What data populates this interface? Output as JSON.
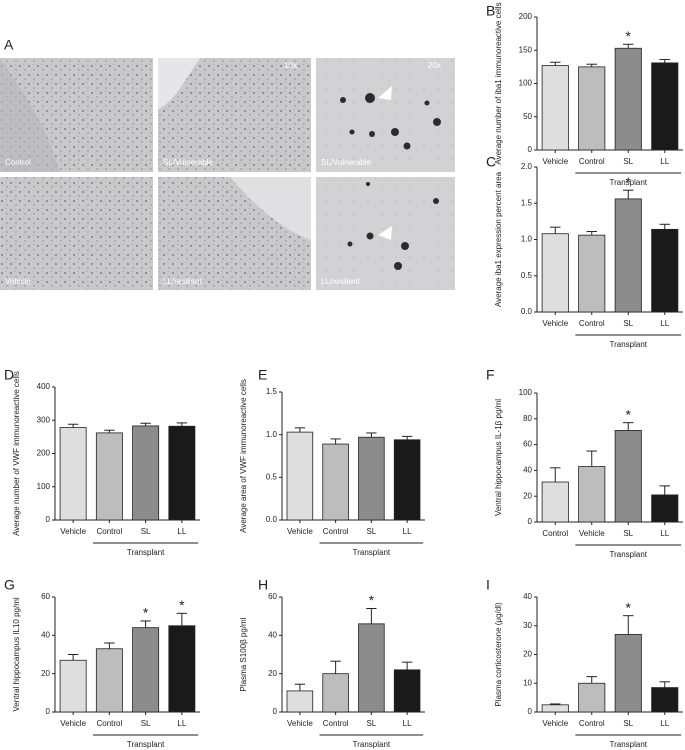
{
  "panel_a": {
    "label": "A",
    "images": [
      {
        "label": "Control"
      },
      {
        "label": "SL/Vulnerable",
        "magnification": "10x"
      },
      {
        "label": "SL/Vulnerable",
        "magnification": "20x"
      },
      {
        "label": "Vehicle"
      },
      {
        "label": "LL/resilient"
      },
      {
        "label": "LL/resilient"
      }
    ]
  },
  "chart_data": [
    {
      "type": "bar",
      "panel": "B",
      "ylabel": "Average number of iba1 immunoreactive cells",
      "categories": [
        "Vehicle",
        "Control",
        "SL",
        "LL"
      ],
      "values": [
        127,
        125,
        153,
        131
      ],
      "errors": [
        5,
        4,
        6,
        5
      ],
      "colors": [
        "#dedede",
        "#bdbdbd",
        "#8c8c8c",
        "#1a1a1a"
      ],
      "ylim": [
        0,
        200
      ],
      "yticks": [
        0,
        50,
        100,
        150,
        200
      ],
      "group_label": {
        "text": "Transplant",
        "from": "Control",
        "to": "LL"
      },
      "annotations": [
        {
          "category": "SL",
          "text": "*"
        }
      ]
    },
    {
      "type": "bar",
      "panel": "C",
      "ylabel": "Average iba1 expression percent area",
      "categories": [
        "Vehicle",
        "Control",
        "SL",
        "LL"
      ],
      "values": [
        1.08,
        1.06,
        1.56,
        1.14
      ],
      "errors": [
        0.09,
        0.05,
        0.12,
        0.07
      ],
      "colors": [
        "#dedede",
        "#bdbdbd",
        "#8c8c8c",
        "#1a1a1a"
      ],
      "ylim": [
        0,
        2
      ],
      "yticks": [
        {
          "value": 0,
          "label": "0.0"
        },
        0.5,
        {
          "value": 1,
          "label": "1.0"
        },
        1.5,
        {
          "value": 2,
          "label": "2.0"
        }
      ],
      "group_label": {
        "text": "Transplant",
        "from": "Control",
        "to": "LL"
      },
      "annotations": [
        {
          "category": "SL",
          "text": "*"
        }
      ]
    },
    {
      "type": "bar",
      "panel": "D",
      "ylabel": "Average number of VWF immunoreactive cells",
      "categories": [
        "Vehicle",
        "Control",
        "SL",
        "LL"
      ],
      "values": [
        278,
        262,
        283,
        282
      ],
      "errors": [
        10,
        8,
        8,
        10
      ],
      "colors": [
        "#dedede",
        "#bdbdbd",
        "#8c8c8c",
        "#1a1a1a"
      ],
      "ylim": [
        0,
        400
      ],
      "yticks": [
        0,
        100,
        200,
        300,
        400
      ],
      "group_label": {
        "text": "Transplant",
        "from": "Control",
        "to": "LL"
      },
      "annotations": []
    },
    {
      "type": "bar",
      "panel": "E",
      "ylabel": "Average area of VWF immunoreactive cells",
      "categories": [
        "Vehicle",
        "Control",
        "SL",
        "LL"
      ],
      "values": [
        1.03,
        0.89,
        0.97,
        0.94
      ],
      "errors": [
        0.05,
        0.06,
        0.05,
        0.04
      ],
      "colors": [
        "#dedede",
        "#bdbdbd",
        "#8c8c8c",
        "#1a1a1a"
      ],
      "ylim": [
        0,
        1.5
      ],
      "yticks": [
        {
          "value": 0,
          "label": "0.0"
        },
        0.5,
        {
          "value": 1,
          "label": "1.0"
        },
        1.5
      ],
      "group_label": {
        "text": "Transplant",
        "from": "Control",
        "to": "LL"
      },
      "annotations": []
    },
    {
      "type": "bar",
      "panel": "F",
      "ylabel": "Ventral hippocampus IL-1β pg/ml",
      "categories": [
        "Control",
        "Vehicle",
        "SL",
        "LL"
      ],
      "values": [
        31,
        43,
        71,
        21
      ],
      "errors": [
        11,
        12,
        6,
        7
      ],
      "colors": [
        "#dedede",
        "#bdbdbd",
        "#8c8c8c",
        "#1a1a1a"
      ],
      "ylim": [
        0,
        100
      ],
      "yticks": [
        0,
        20,
        40,
        60,
        80,
        100
      ],
      "group_label": {
        "text": "Transplant",
        "from": "Vehicle",
        "to": "LL"
      },
      "annotations": [
        {
          "category": "SL",
          "text": "*"
        }
      ]
    },
    {
      "type": "bar",
      "panel": "G",
      "ylabel": "Ventral hippocampus IL10 pg/ml",
      "categories": [
        "Vehicle",
        "Control",
        "SL",
        "LL"
      ],
      "values": [
        27,
        33,
        44,
        45
      ],
      "errors": [
        3,
        3,
        3.5,
        6.5
      ],
      "colors": [
        "#dedede",
        "#bdbdbd",
        "#8c8c8c",
        "#1a1a1a"
      ],
      "ylim": [
        0,
        60
      ],
      "yticks": [
        0,
        20,
        40,
        60
      ],
      "group_label": {
        "text": "Transplant",
        "from": "Control",
        "to": "LL"
      },
      "annotations": [
        {
          "category": "SL",
          "text": "*"
        },
        {
          "category": "LL",
          "text": "*"
        }
      ]
    },
    {
      "type": "bar",
      "panel": "H",
      "ylabel": "Plasma S100β pg/ml",
      "categories": [
        "Vehicle",
        "Control",
        "SL",
        "LL"
      ],
      "values": [
        11,
        20,
        46,
        22
      ],
      "errors": [
        3.5,
        6.5,
        8,
        4
      ],
      "colors": [
        "#dedede",
        "#bdbdbd",
        "#8c8c8c",
        "#1a1a1a"
      ],
      "ylim": [
        0,
        60
      ],
      "yticks": [
        0,
        20,
        40,
        60
      ],
      "group_label": {
        "text": "Transplant",
        "from": "Control",
        "to": "LL"
      },
      "annotations": [
        {
          "category": "SL",
          "text": "*"
        }
      ]
    },
    {
      "type": "bar",
      "panel": "I",
      "ylabel": "Plasma corticosterone (μg/dl)",
      "categories": [
        "Vehicle",
        "Control",
        "SL",
        "LL"
      ],
      "values": [
        2.5,
        10,
        27,
        8.5
      ],
      "errors": [
        0.3,
        2.3,
        6.5,
        2
      ],
      "colors": [
        "#dedede",
        "#bdbdbd",
        "#8c8c8c",
        "#1a1a1a"
      ],
      "ylim": [
        0,
        40
      ],
      "yticks": [
        0,
        10,
        20,
        30,
        40
      ],
      "group_label": {
        "text": "Transplant",
        "from": "Control",
        "to": "LL"
      },
      "annotations": [
        {
          "category": "SL",
          "text": "*"
        }
      ]
    }
  ]
}
